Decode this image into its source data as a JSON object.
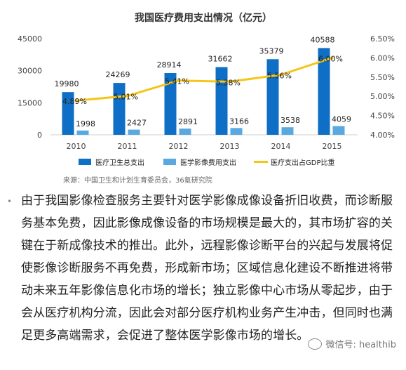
{
  "chart_data": {
    "type": "bar",
    "title": "我国医疗费用支出情况（亿元）",
    "categories": [
      "2010",
      "2011",
      "2012",
      "2013",
      "2014",
      "2015"
    ],
    "series": [
      {
        "name": "医疗卫生总支出",
        "kind": "bar",
        "axis": "left",
        "color": "#0f6fc6",
        "values": [
          19980,
          24269,
          28914,
          31662,
          35379,
          40588
        ],
        "labels": [
          "19980",
          "24269",
          "28914",
          "31662",
          "35379",
          "40588"
        ]
      },
      {
        "name": "医学影像费用支出",
        "kind": "bar",
        "axis": "left",
        "color": "#5aa8e0",
        "values": [
          1998,
          2427,
          2891,
          3166,
          3538,
          4059
        ],
        "labels": [
          "1998",
          "2427",
          "2891",
          "3166",
          "3538",
          "4059"
        ]
      },
      {
        "name": "医疗支出占GDP比重",
        "kind": "line",
        "axis": "right",
        "color": "#f5c518",
        "values": [
          4.89,
          5.01,
          5.41,
          5.38,
          5.56,
          6.0
        ],
        "labels": [
          "4.89%",
          "5.01%",
          "5.41%",
          "5.38%",
          "5.56%",
          "6.00%"
        ]
      }
    ],
    "ylim_left": [
      0,
      45000
    ],
    "yticks_left": [
      "0",
      "15000",
      "30000",
      "45000"
    ],
    "ylim_right": [
      4.0,
      6.5
    ],
    "yticks_right": [
      "4.00%",
      "4.50%",
      "5.00%",
      "5.50%",
      "6.00%",
      "6.50%"
    ],
    "legend": "bottom",
    "grid": false
  },
  "source_text": "来源：中国卫生和计划生育委员会，36氪研究院",
  "bullet": "•",
  "paragraph": "由于我国影像检查服务主要针对医学影像成像设备折旧收费，而诊断服务基本免费，因此影像成像设备的市场规模是最大的，其市场扩容的关键在于新成像技术的推出。此外，远程影像诊断平台的兴起与发展将促使影像诊断服务不再免费，形成新市场；区域信息化建设不断推进将带动未来五年影像信息化市场的增长；独立影像中心市场从零起步，由于会从医疗机构分流，因此会对部分医疗机构业务产生冲击，但同时也满足更多高端需求，会促进了整体医学影像市场的增长。",
  "watermark": "微信号: healthib"
}
